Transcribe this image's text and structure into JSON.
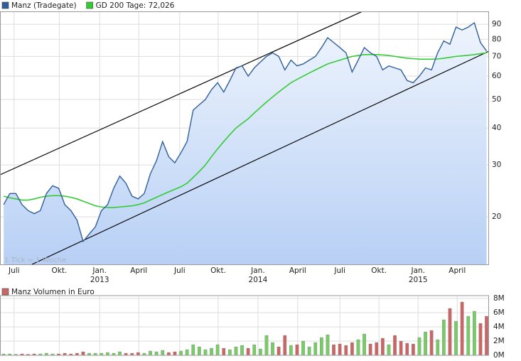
{
  "chart_data": [
    {
      "type": "line",
      "log_scale": true,
      "grid": true,
      "annotation": "1 Tick = 1 Woche",
      "series": [
        {
          "name": "Manz (Tradegate)",
          "color": "#2f5f9c",
          "values": [
            22,
            24,
            24,
            22,
            21,
            20.5,
            21,
            24,
            25.5,
            25,
            22,
            21,
            19.5,
            16.5,
            17.5,
            18.5,
            21,
            22,
            25,
            27.5,
            26,
            23.5,
            23,
            24,
            28,
            31,
            36,
            32,
            30.5,
            33,
            36,
            46,
            48,
            50,
            54,
            57,
            53,
            58,
            64,
            65,
            60,
            64,
            67,
            70,
            72,
            70,
            63,
            68,
            65,
            66,
            68,
            70,
            75,
            81,
            78,
            75,
            72,
            62,
            68,
            75,
            72,
            70,
            63,
            65,
            64,
            63,
            58,
            57,
            60,
            64,
            63,
            72,
            79,
            77,
            88,
            86,
            88,
            91,
            78,
            73
          ]
        },
        {
          "name": "GD 200 Tage: 72,026",
          "color": "#33cc33",
          "values": [
            23.5,
            23.2,
            23,
            22.8,
            22.8,
            23,
            23.3,
            23.5,
            23.6,
            23.6,
            23.5,
            23.3,
            23,
            22.6,
            22.2,
            21.8,
            21.6,
            21.5,
            21.5,
            21.6,
            21.7,
            21.8,
            22,
            22.3,
            22.8,
            23.3,
            23.8,
            24.3,
            24.8,
            25.3,
            26,
            27.2,
            28.5,
            30,
            32,
            34,
            36,
            38,
            40,
            41.5,
            43,
            45,
            47,
            49,
            51,
            53,
            55,
            57,
            58.5,
            60,
            61.5,
            63,
            64.5,
            66,
            67,
            68,
            69,
            70,
            70.5,
            71,
            71,
            71,
            70.8,
            70.5,
            70,
            69.5,
            69,
            68.8,
            68.5,
            68.5,
            68.5,
            68.6,
            69,
            69.5,
            70,
            70.3,
            70.6,
            71,
            71.5,
            72
          ]
        }
      ],
      "xlim": [
        -0.6,
        79.4
      ],
      "xticks": [
        {
          "value": 1.7,
          "label": "Juli"
        },
        {
          "value": 9.1,
          "label": "Okt."
        },
        {
          "value": 15.7,
          "label": "Jan.",
          "year": "2013"
        },
        {
          "value": 22.1,
          "label": "April"
        },
        {
          "value": 28.8,
          "label": "Juli"
        },
        {
          "value": 35.1,
          "label": "Okt."
        },
        {
          "value": 41.6,
          "label": "Jan.",
          "year": "2014"
        },
        {
          "value": 48.1,
          "label": "April"
        },
        {
          "value": 55,
          "label": "Juli"
        },
        {
          "value": 61.4,
          "label": "Okt."
        },
        {
          "value": 67.8,
          "label": "Jan.",
          "year": "2015"
        },
        {
          "value": 74.2,
          "label": "April"
        }
      ],
      "ylim": [
        13.8,
        99.5
      ],
      "yticks": [
        20,
        30,
        40,
        50,
        60,
        70,
        80,
        90
      ]
    },
    {
      "type": "bar",
      "title": "Manz Volumen in Euro",
      "up_color": "#77cc66",
      "down_color": "#cc6666",
      "values": [
        200000,
        200000,
        150000,
        200000,
        150000,
        200000,
        200000,
        300000,
        200000,
        200000,
        300000,
        200000,
        300000,
        500000,
        300000,
        300000,
        300000,
        400000,
        300000,
        500000,
        300000,
        300000,
        400000,
        300000,
        600000,
        500000,
        700000,
        400000,
        500000,
        600000,
        800000,
        1500000,
        1200000,
        800000,
        1000000,
        1500000,
        1000000,
        800000,
        1200000,
        1400000,
        1000000,
        1500000,
        900000,
        2800000,
        1800000,
        1200000,
        2800000,
        1400000,
        1500000,
        2000000,
        1200000,
        1800000,
        2500000,
        2900000,
        1500000,
        1600000,
        1400000,
        1800000,
        2200000,
        3000000,
        1600000,
        1800000,
        2400000,
        1500000,
        2800000,
        2000000,
        1700000,
        1600000,
        2500000,
        3300000,
        3500000,
        2200000,
        5000000,
        6600000,
        4800000,
        7500000,
        5500000,
        6200000,
        4500000,
        5500000
      ],
      "ylim": [
        0,
        8400000
      ],
      "yticks": [
        {
          "value": 0,
          "label": "0M"
        },
        {
          "value": 2000000,
          "label": "2M"
        },
        {
          "value": 4000000,
          "label": "4M"
        },
        {
          "value": 6000000,
          "label": "6M"
        },
        {
          "value": 8000000,
          "label": "8M"
        }
      ]
    }
  ]
}
